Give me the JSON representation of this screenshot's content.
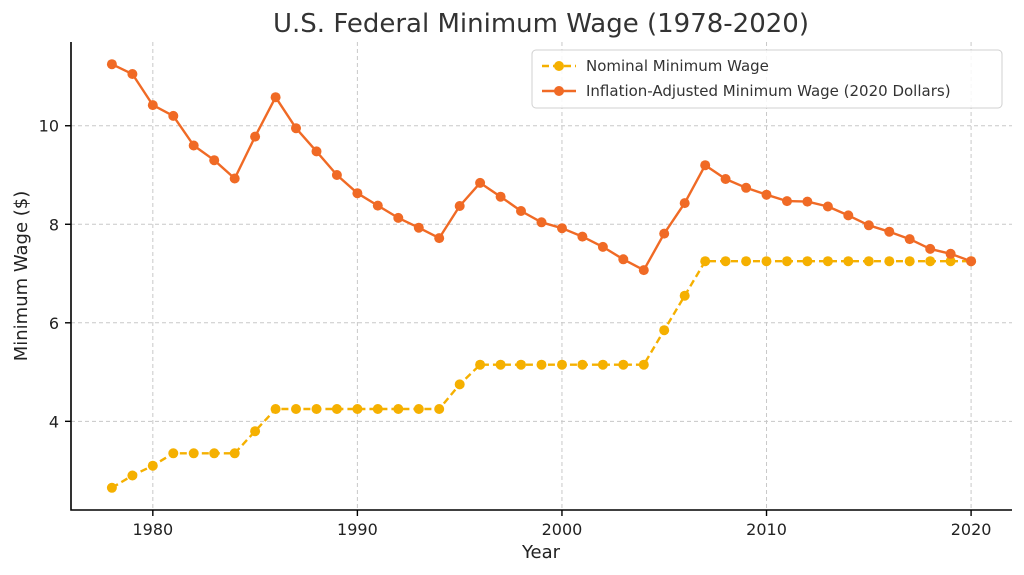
{
  "chart_data": {
    "type": "line",
    "title": "U.S. Federal Minimum Wage (1978-2020)",
    "xlabel": "Year",
    "ylabel": "Minimum Wage ($)",
    "xlim": [
      1976,
      2022
    ],
    "ylim": [
      2.2,
      11.7
    ],
    "xticks": [
      1980,
      1990,
      2000,
      2010,
      2020
    ],
    "yticks": [
      4,
      6,
      8,
      10
    ],
    "grid": true,
    "legend_position": "top-right",
    "x": [
      1978,
      1979,
      1980,
      1981,
      1982,
      1983,
      1984,
      1985,
      1986,
      1987,
      1988,
      1989,
      1990,
      1991,
      1992,
      1993,
      1994,
      1995,
      1996,
      1997,
      1998,
      1999,
      2000,
      2001,
      2002,
      2003,
      2004,
      2005,
      2006,
      2007,
      2008,
      2009,
      2010,
      2011,
      2012,
      2013,
      2014,
      2015,
      2016,
      2017,
      2018,
      2019,
      2020
    ],
    "series": [
      {
        "name": "Nominal Minimum Wage",
        "color": "#f5b000",
        "line_style": "dashed",
        "values": [
          2.65,
          2.9,
          3.1,
          3.35,
          3.35,
          3.35,
          3.35,
          3.8,
          4.25,
          4.25,
          4.25,
          4.25,
          4.25,
          4.25,
          4.25,
          4.25,
          4.25,
          4.75,
          5.15,
          5.15,
          5.15,
          5.15,
          5.15,
          5.15,
          5.15,
          5.15,
          5.15,
          5.85,
          6.55,
          7.25,
          7.25,
          7.25,
          7.25,
          7.25,
          7.25,
          7.25,
          7.25,
          7.25,
          7.25,
          7.25,
          7.25,
          7.25,
          7.25
        ]
      },
      {
        "name": "Inflation-Adjusted Minimum Wage (2020 Dollars)",
        "color": "#f06a25",
        "line_style": "solid",
        "values": [
          11.25,
          11.05,
          10.42,
          10.2,
          9.6,
          9.3,
          8.93,
          9.78,
          10.58,
          9.95,
          9.48,
          9.0,
          8.63,
          8.38,
          8.13,
          7.93,
          7.72,
          8.37,
          8.84,
          8.56,
          8.27,
          8.04,
          7.92,
          7.75,
          7.54,
          7.29,
          7.07,
          7.81,
          8.43,
          9.2,
          8.92,
          8.74,
          8.6,
          8.47,
          8.46,
          8.36,
          8.18,
          7.98,
          7.85,
          7.7,
          7.5,
          7.4,
          7.25
        ]
      }
    ]
  }
}
